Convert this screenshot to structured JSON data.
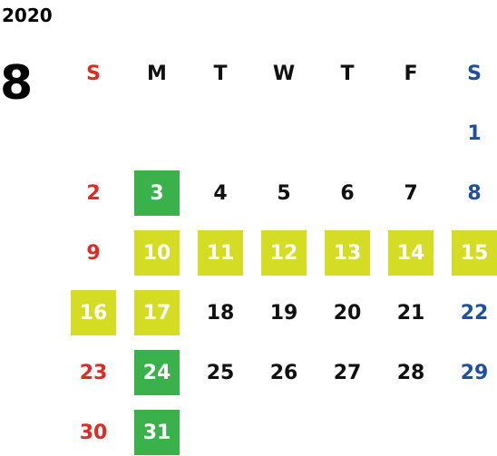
{
  "year": "2020",
  "month": "8",
  "weekdays": [
    "S",
    "M",
    "T",
    "W",
    "T",
    "F",
    "S"
  ],
  "colors": {
    "sunday": "#e02a24",
    "saturday": "#1f4f9e",
    "weekday": "#111111",
    "highlight_green": "#3ab14a",
    "highlight_yellow": "#d4dc24"
  },
  "weeks": [
    [
      "",
      "",
      "",
      "",
      "",
      "",
      "1"
    ],
    [
      "2",
      "3",
      "4",
      "5",
      "6",
      "7",
      "8"
    ],
    [
      "9",
      "10",
      "11",
      "12",
      "13",
      "14",
      "15"
    ],
    [
      "16",
      "17",
      "18",
      "19",
      "20",
      "21",
      "22"
    ],
    [
      "23",
      "24",
      "25",
      "26",
      "27",
      "28",
      "29"
    ],
    [
      "30",
      "31",
      "",
      "",
      "",
      "",
      ""
    ]
  ],
  "highlights": {
    "green": [
      "3",
      "24",
      "31"
    ],
    "yellow": [
      "10",
      "11",
      "12",
      "13",
      "14",
      "15",
      "16",
      "17"
    ]
  }
}
